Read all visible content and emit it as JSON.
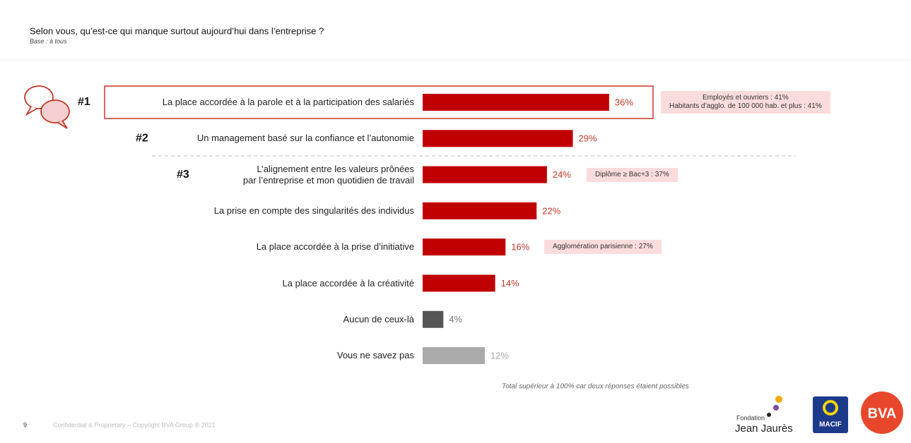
{
  "chart_data": {
    "type": "bar",
    "orientation": "horizontal",
    "title": "Selon vous, qu’est-ce qui manque surtout aujourd’hui dans l’entreprise ?",
    "subtitle": "Base : à tous",
    "categories": [
      "La place accordée à la parole et à la participation des salariés",
      "Un management basé sur la confiance et l’autonomie",
      "L’alignement entre les valeurs prônées\npar l’entreprise et mon quotidien de travail",
      "La prise en compte des singularités des individus",
      "La place accordée à la prise d’initiative",
      "La place accordée à la créativité",
      "Aucun de ceux-là",
      "Vous ne savez pas"
    ],
    "values": [
      36,
      29,
      24,
      22,
      16,
      14,
      4,
      12
    ],
    "value_labels": [
      "36%",
      "29%",
      "24%",
      "22%",
      "16%",
      "14%",
      "4%",
      "12%"
    ],
    "colors": [
      "#c00000",
      "#c00000",
      "#c00000",
      "#c00000",
      "#c00000",
      "#c00000",
      "#555555",
      "#aaaaaa"
    ],
    "xlim": [
      0,
      100
    ],
    "ranks": [
      "#1",
      "#2",
      "#3"
    ],
    "callouts": [
      [
        "Employés et ouvriers : 41%",
        "Habitants d’agglo. de 100 000 hab. et plus : 41%"
      ],
      null,
      [
        "Diplôme ≥ Bac+3 : 37%"
      ],
      null,
      [
        "Agglomération parisienne : 27%"
      ],
      null,
      null,
      null
    ],
    "footnote": "Total supérieur à 100% car deux réponses étaient possibles"
  },
  "footer": {
    "page_number": "9",
    "copyright": "Confidential & Proprietary – Copyright BVA Group ® 2021",
    "logos": {
      "fondation": "Fondation",
      "jean_jaures": "Jean Jaurès",
      "macif": "MACIF",
      "bva": "BVA"
    }
  }
}
